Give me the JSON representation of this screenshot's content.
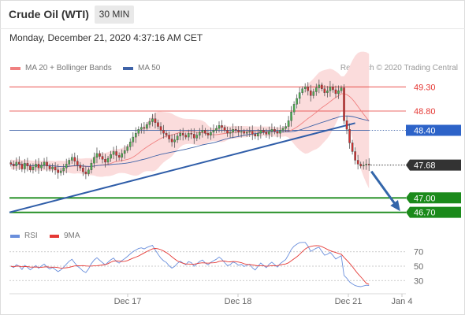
{
  "header": {
    "instrument": "Crude Oil (WTI)",
    "timeframe": "30 MIN"
  },
  "datetime": "Monday, December 21, 2020 4:37:16 AM CET",
  "legend": {
    "bollinger_label": "MA 20 + Bollinger Bands",
    "ma50_label": "MA 50",
    "credit": "Research © 2020 Trading Central"
  },
  "rsi_legend": {
    "rsi_label": "RSI",
    "ma_label": "9MA"
  },
  "colors": {
    "up": "#4caf50",
    "down": "#d32f2f",
    "candle_body": "#555555",
    "band": "#fbdcdc",
    "ma20": "#f08080",
    "ma50": "#3f63a8",
    "resistance": "#e53935",
    "support": "#1b8a1b",
    "last": "#333333",
    "rsi": "#6a8fdc",
    "rsi_ma": "#e53935",
    "trend": "#2f5da8",
    "arrow": "#3366aa"
  },
  "chart_data": [
    {
      "type": "candlestick",
      "title": "Crude Oil (WTI)",
      "timeframe": "30 MIN",
      "x_ticks": [
        "Dec 17",
        "Dec 18",
        "Dec 21",
        "Jan 4"
      ],
      "ylim": [
        46.45,
        49.55
      ],
      "levels": [
        {
          "value": 49.3,
          "label": "49.30",
          "kind": "resistance",
          "style": "line-red"
        },
        {
          "value": 48.8,
          "label": "48.80",
          "kind": "resistance",
          "style": "line-red"
        },
        {
          "value": 48.4,
          "label": "48.40",
          "kind": "pivot",
          "style": "box-blue"
        },
        {
          "value": 47.68,
          "label": "47.68",
          "kind": "last",
          "style": "box-dark"
        },
        {
          "value": 47.0,
          "label": "47.00",
          "kind": "support",
          "style": "box-green"
        },
        {
          "value": 46.7,
          "label": "46.70",
          "kind": "support",
          "style": "box-green"
        }
      ],
      "trendline": {
        "from": {
          "x": "Dec 16",
          "y": 46.7
        },
        "to": {
          "x": "Dec 21",
          "y": 48.55
        }
      },
      "forecast_arrow": {
        "from": 47.55,
        "to": 46.7,
        "direction": "down"
      },
      "series": [
        {
          "name": "Price",
          "close": [
            47.7,
            47.66,
            47.74,
            47.7,
            47.6,
            47.72,
            47.66,
            47.58,
            47.64,
            47.7,
            47.62,
            47.68,
            47.74,
            47.66,
            47.6,
            47.64,
            47.58,
            47.52,
            47.56,
            47.62,
            47.7,
            47.78,
            47.84,
            47.76,
            47.68,
            47.62,
            47.54,
            47.5,
            47.58,
            47.72,
            47.84,
            47.92,
            47.86,
            47.8,
            47.74,
            47.82,
            47.9,
            47.96,
            47.88,
            47.84,
            47.92,
            47.98,
            48.06,
            48.16,
            48.26,
            48.34,
            48.42,
            48.46,
            48.44,
            48.52,
            48.58,
            48.64,
            48.56,
            48.48,
            48.4,
            48.34,
            48.3,
            48.22,
            48.16,
            48.2,
            48.28,
            48.34,
            48.3,
            48.26,
            48.34,
            48.32,
            48.24,
            48.3,
            48.36,
            48.4,
            48.34,
            48.3,
            48.36,
            48.4,
            48.44,
            48.5,
            48.46,
            48.4,
            48.34,
            48.36,
            48.42,
            48.4,
            48.36,
            48.38,
            48.34,
            48.36,
            48.38,
            48.32,
            48.28,
            48.34,
            48.4,
            48.36,
            48.32,
            48.38,
            48.42,
            48.38,
            48.34,
            48.4,
            48.44,
            48.48,
            48.6,
            48.78,
            48.94,
            49.06,
            49.18,
            49.26,
            49.3,
            49.22,
            49.12,
            49.2,
            49.28,
            49.34,
            49.26,
            49.18,
            49.22,
            49.3,
            49.24,
            49.16,
            49.22,
            49.28,
            48.6,
            48.42,
            48.14,
            47.96,
            47.78,
            47.7,
            47.66,
            47.68,
            47.7,
            47.68
          ]
        },
        {
          "name": "MA 20 + Bollinger Bands",
          "note": "moving average with upper/lower bands, derived from Price"
        },
        {
          "name": "MA 50",
          "note": "moving average derived from Price"
        }
      ]
    },
    {
      "type": "line",
      "title": "RSI",
      "yticks": [
        70,
        50,
        30
      ],
      "ylim": [
        15,
        85
      ],
      "series": [
        {
          "name": "RSI",
          "note": "oscillator derived from Price"
        },
        {
          "name": "9MA",
          "note": "9-period moving average of RSI"
        }
      ]
    }
  ]
}
